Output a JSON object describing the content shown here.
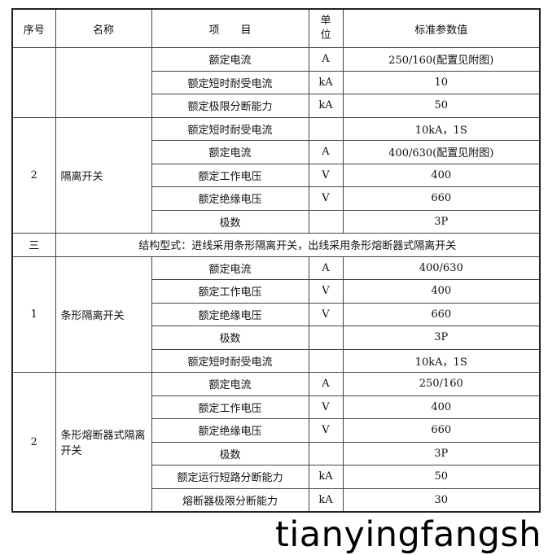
{
  "header": {
    "no": "序号",
    "name": "名称",
    "item": "项　　目",
    "unit": "单位",
    "value": "标准参数值"
  },
  "rows": [
    {
      "no": "",
      "name": "",
      "items": [
        [
          "额定电流",
          "A",
          "250/160(配置见附图)"
        ],
        [
          "额定短时耐受电流",
          "kA",
          "10"
        ],
        [
          "额定极限分断能力",
          "kA",
          "50"
        ]
      ]
    },
    {
      "no": "2",
      "name": "隔离开关",
      "items": [
        [
          "额定短时耐受电流",
          "",
          "10kA，1S"
        ],
        [
          "额定电流",
          "A",
          "400/630(配置见附图)"
        ],
        [
          "额定工作电压",
          "V",
          "400"
        ],
        [
          "额定绝缘电压",
          "V",
          "660"
        ],
        [
          "极数",
          "",
          "3P"
        ]
      ]
    },
    {
      "no": "三",
      "span": "结构型式：进线采用条形隔离开关，出线采用条形熔断器式隔离开关"
    },
    {
      "no": "1",
      "name": "条形隔离开关",
      "items": [
        [
          "额定电流",
          "A",
          "400/630"
        ],
        [
          "额定工作电压",
          "V",
          "400"
        ],
        [
          "额定绝缘电压",
          "V",
          "660"
        ],
        [
          "极数",
          "",
          "3P"
        ],
        [
          "额定短时耐受电流",
          "",
          "10kA，1S"
        ]
      ]
    },
    {
      "no": "2",
      "name": "条形熔断器式隔离开关",
      "items": [
        [
          "额定电流",
          "A",
          "250/160"
        ],
        [
          "额定工作电压",
          "V",
          "400"
        ],
        [
          "额定绝缘电压",
          "V",
          "660"
        ],
        [
          "极数",
          "",
          "3P"
        ],
        [
          "额定运行短路分断能力",
          "kA",
          "50"
        ],
        [
          "熔断器极限分断能力",
          "kA",
          "30"
        ]
      ]
    }
  ],
  "watermark": "tianyingfangsh"
}
